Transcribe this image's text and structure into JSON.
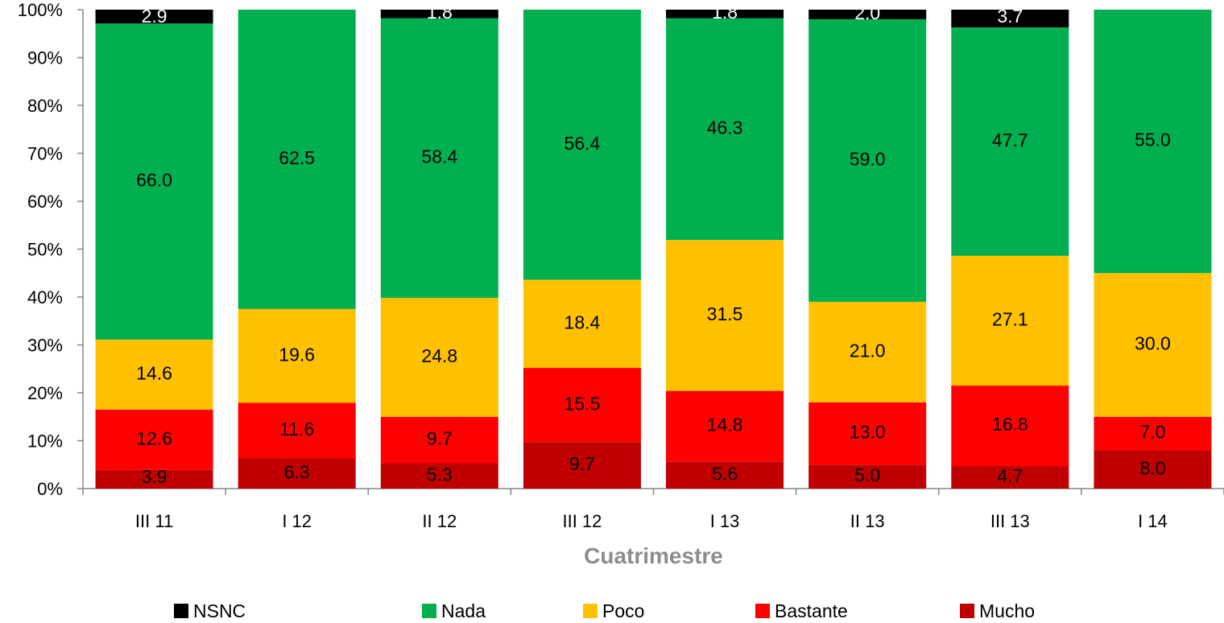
{
  "chart_data": {
    "type": "bar",
    "stacked": true,
    "percent_stacked": true,
    "categories": [
      "III 11",
      "I 12",
      "II 12",
      "III 12",
      "I 13",
      "II 13",
      "III 13",
      "I 14"
    ],
    "series": [
      {
        "name": "Mucho",
        "color": "#c00000",
        "values": [
          3.9,
          6.3,
          5.3,
          9.7,
          5.6,
          5.0,
          4.7,
          8.0
        ]
      },
      {
        "name": "Bastante",
        "color": "#ff0000",
        "values": [
          12.6,
          11.6,
          9.7,
          15.5,
          14.8,
          13.0,
          16.8,
          7.0
        ]
      },
      {
        "name": "Poco",
        "color": "#ffc000",
        "values": [
          14.6,
          19.6,
          24.8,
          18.4,
          31.5,
          21.0,
          27.1,
          30.0
        ]
      },
      {
        "name": "Nada",
        "color": "#00b050",
        "values": [
          66.0,
          62.5,
          58.4,
          56.4,
          46.3,
          59.0,
          47.7,
          55.0
        ]
      },
      {
        "name": "NSNC",
        "color": "#000000",
        "values": [
          2.9,
          0.0,
          1.8,
          0.0,
          1.8,
          2.0,
          3.7,
          0.0
        ]
      }
    ],
    "ylim": [
      0,
      100
    ],
    "yticks": [
      "0%",
      "10%",
      "20%",
      "30%",
      "40%",
      "50%",
      "60%",
      "70%",
      "80%",
      "90%",
      "100%"
    ],
    "xlabel": "Cuatrimestre",
    "ylabel": "",
    "grid": false,
    "legend_position": "bottom",
    "legend_order": [
      "NSNC",
      "Nada",
      "Poco",
      "Bastante",
      "Mucho"
    ]
  }
}
